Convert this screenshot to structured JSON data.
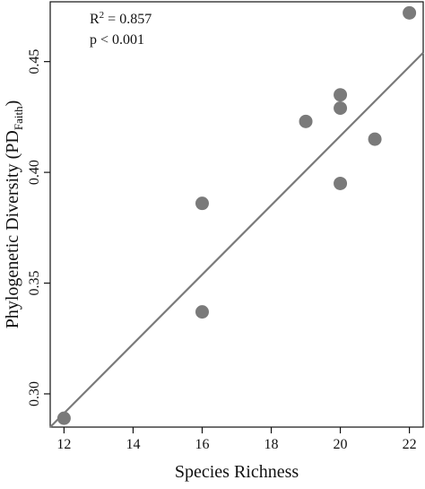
{
  "chart_data": {
    "type": "scatter",
    "xlabel": "Species Richness",
    "ylabel": {
      "main": "Phylogenetic Diversity (PD",
      "sub": "Faith",
      "close": ")"
    },
    "xlim": [
      11.6,
      22.4
    ],
    "ylim": [
      0.285,
      0.477
    ],
    "xticks": [
      12,
      14,
      16,
      18,
      20,
      22
    ],
    "xtick_labels": [
      "12",
      "14",
      "16",
      "18",
      "20",
      "22"
    ],
    "yticks": [
      0.3,
      0.35,
      0.4,
      0.45
    ],
    "ytick_labels": [
      "0.30",
      "0.35",
      "0.40",
      "0.45"
    ],
    "points": [
      {
        "x": 12,
        "y": 0.289
      },
      {
        "x": 16,
        "y": 0.337
      },
      {
        "x": 16,
        "y": 0.386
      },
      {
        "x": 19,
        "y": 0.423
      },
      {
        "x": 20,
        "y": 0.395
      },
      {
        "x": 20,
        "y": 0.429
      },
      {
        "x": 20,
        "y": 0.435
      },
      {
        "x": 21,
        "y": 0.415
      },
      {
        "x": 22,
        "y": 0.472
      }
    ],
    "fit_line": {
      "start": {
        "x": 11.6,
        "y": 0.285
      },
      "end": {
        "x": 22.4,
        "y": 0.454
      }
    },
    "annotations": {
      "r2_label": "R",
      "r2_sup": "2",
      "r2_value": " = 0.857",
      "p_value": "p < 0.001"
    },
    "grid": false,
    "legend": "none",
    "colors": {
      "points": "#7a7a7a",
      "fit_line": "#7a7a7a",
      "axis": "#111111"
    }
  }
}
